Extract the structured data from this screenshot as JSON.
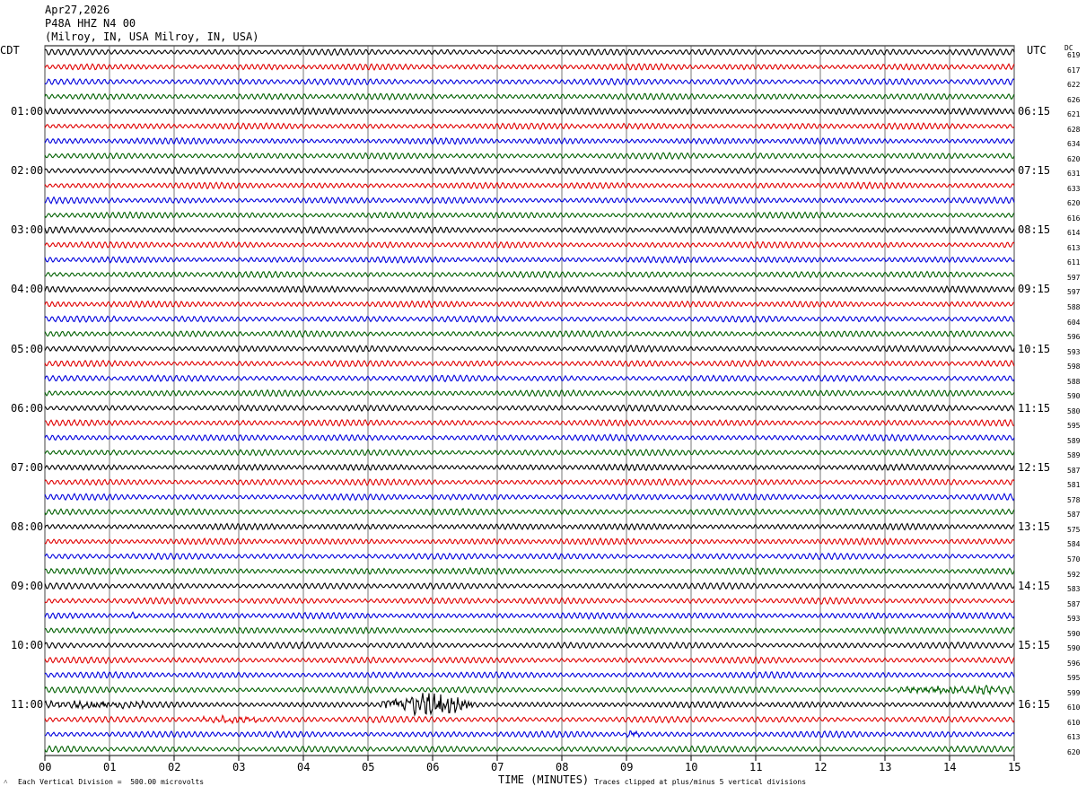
{
  "header": {
    "date": "Apr27,2026",
    "station": "P48A HHZ N4 00",
    "location": "(Milroy, IN, USA Milroy, IN, USA)"
  },
  "corner_left": "CDT",
  "corner_right": "UTC",
  "corner_dc": "DC",
  "footer": {
    "vertical_division": "Each Vertical Division =  500.00 microvolts",
    "xlabel": "TIME (MINUTES)",
    "clip_note": "Traces clipped at plus/minus 5 vertical divisions"
  },
  "colors": {
    "trace_cycle": [
      "#000000",
      "#e00000",
      "#0000dd",
      "#006000"
    ],
    "grid": "#000000"
  },
  "chart_data": {
    "type": "line",
    "title": "P48A HHZ N4 00",
    "xlabel": "TIME (MINUTES)",
    "x_ticks": [
      "00",
      "01",
      "02",
      "03",
      "04",
      "05",
      "06",
      "07",
      "08",
      "09",
      "10",
      "11",
      "12",
      "13",
      "14",
      "15"
    ],
    "xlim": [
      0,
      15
    ],
    "rows_per_hour": 4,
    "minutes_per_row": 15,
    "left_hour_labels": [
      "01:00",
      "02:00",
      "03:00",
      "04:00",
      "05:00",
      "06:00",
      "07:00",
      "08:00",
      "09:00",
      "10:00",
      "11:00"
    ],
    "right_hour_labels": [
      "06:15",
      "07:15",
      "08:15",
      "09:15",
      "10:15",
      "11:15",
      "12:15",
      "13:15",
      "14:15",
      "15:15",
      "16:15"
    ],
    "dc_offsets": [
      619,
      617,
      622,
      626,
      621,
      628,
      634,
      620,
      631,
      633,
      620,
      616,
      614,
      613,
      611,
      597,
      597,
      588,
      604,
      596,
      593,
      598,
      588,
      590,
      580,
      595,
      589,
      589,
      587,
      581,
      578,
      587,
      575,
      584,
      570,
      592,
      583,
      587,
      593,
      590,
      590,
      596,
      595,
      599,
      610,
      610,
      613,
      620
    ],
    "events": [
      {
        "row": 44,
        "start_min": 5.2,
        "end_min": 6.6,
        "desc": "strong burst"
      },
      {
        "row": 44,
        "start_min": 0.0,
        "end_min": 1.6,
        "desc": "moderate"
      },
      {
        "row": 45,
        "start_min": 2.3,
        "end_min": 3.4,
        "desc": "moderate"
      },
      {
        "row": 43,
        "start_min": 13.0,
        "end_min": 15.0,
        "desc": "moderate"
      },
      {
        "row": 38,
        "start_min": 1.3,
        "end_min": 1.5,
        "desc": "spike"
      },
      {
        "row": 46,
        "start_min": 9.0,
        "end_min": 9.2,
        "desc": "spike"
      }
    ]
  }
}
